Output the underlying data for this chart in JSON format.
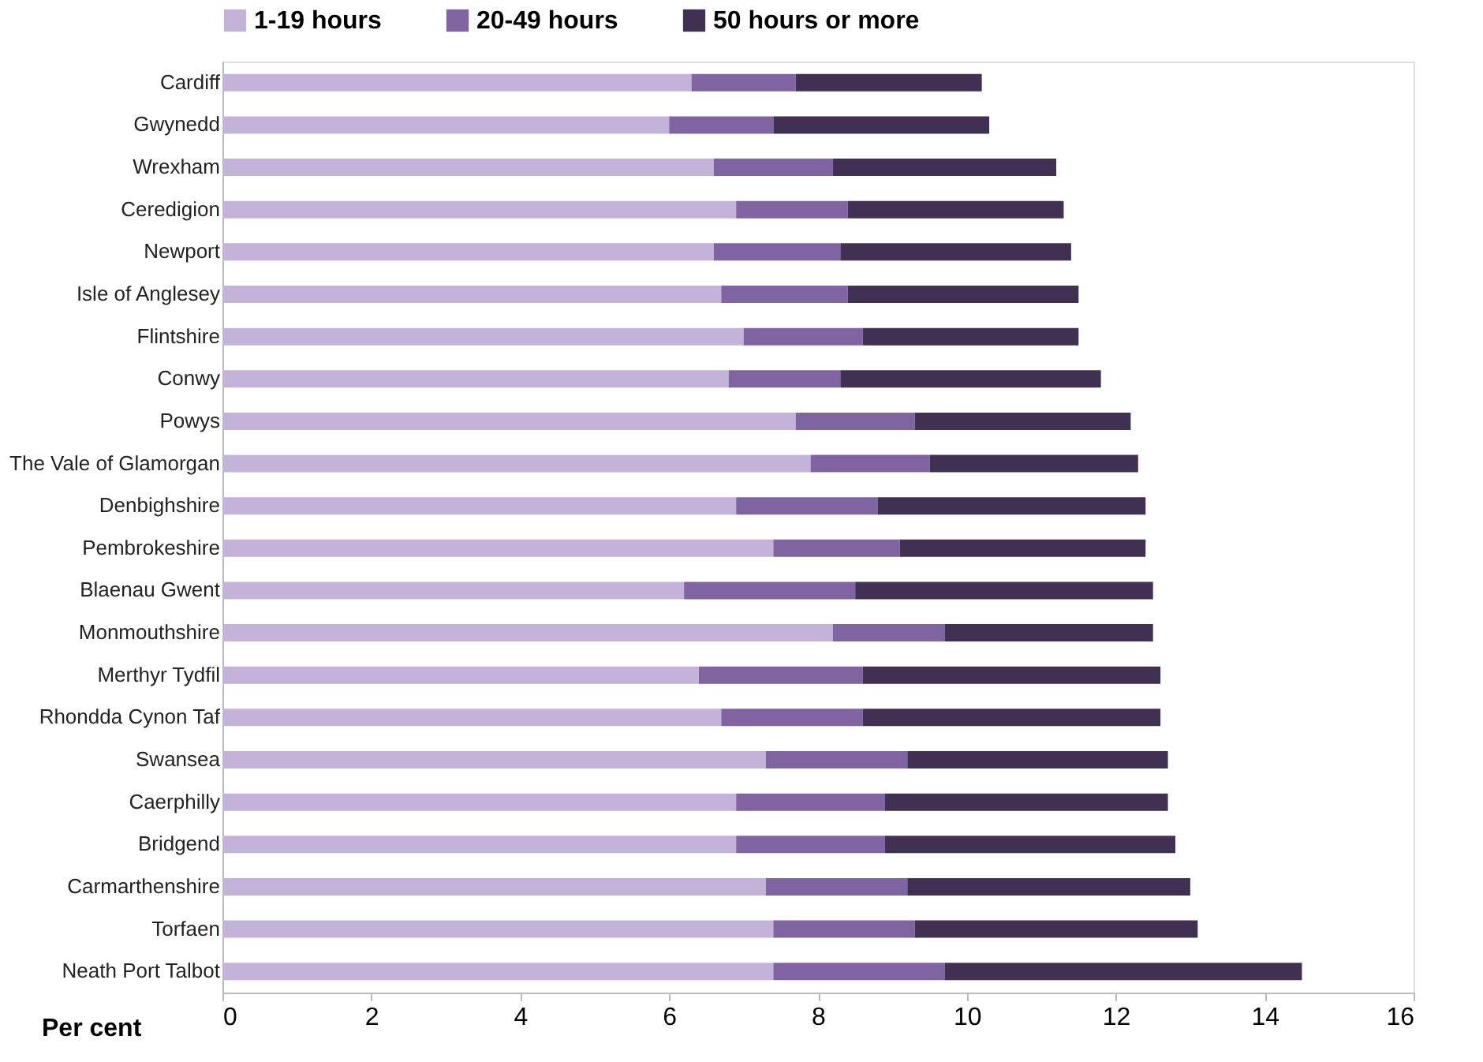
{
  "chart_data": {
    "type": "bar",
    "orientation": "horizontal",
    "stacked": true,
    "xlabel": "Per cent",
    "legend": "top",
    "grid": false,
    "categories": [
      "Cardiff",
      "Gwynedd",
      "Wrexham",
      "Ceredigion",
      "Newport",
      "Isle of Anglesey",
      "Flintshire",
      "Conwy",
      "Powys",
      "The Vale of Glamorgan",
      "Denbighshire",
      "Pembrokeshire",
      "Blaenau Gwent",
      "Monmouthshire",
      "Merthyr Tydfil",
      "Rhondda Cynon Taf",
      "Swansea",
      "Caerphilly",
      "Bridgend",
      "Carmarthenshire",
      "Torfaen",
      "Neath Port Talbot"
    ],
    "xlim": [
      0,
      16
    ],
    "xticks": [
      0,
      2,
      4,
      6,
      8,
      10,
      12,
      14,
      16
    ],
    "series": [
      {
        "name": "1-19 hours",
        "color": "#c3b3d9",
        "values": [
          6.3,
          6.0,
          6.6,
          6.9,
          6.6,
          6.7,
          7.0,
          6.8,
          7.7,
          7.9,
          6.9,
          7.4,
          6.2,
          8.2,
          6.4,
          6.7,
          7.3,
          6.9,
          6.9,
          7.3,
          7.4,
          7.4
        ]
      },
      {
        "name": "20-49 hours",
        "color": "#8064a2",
        "values": [
          1.4,
          1.4,
          1.6,
          1.5,
          1.7,
          1.7,
          1.6,
          1.5,
          1.6,
          1.6,
          1.9,
          1.7,
          2.3,
          1.5,
          2.2,
          1.9,
          1.9,
          2.0,
          2.0,
          1.9,
          1.9,
          2.3
        ]
      },
      {
        "name": "50 hours or more",
        "color": "#403152",
        "values": [
          2.5,
          2.9,
          3.0,
          2.9,
          3.1,
          3.1,
          2.9,
          3.5,
          2.9,
          2.8,
          3.6,
          3.3,
          4.0,
          2.8,
          4.0,
          4.0,
          3.5,
          3.8,
          3.9,
          3.8,
          3.8,
          4.8
        ]
      }
    ]
  }
}
